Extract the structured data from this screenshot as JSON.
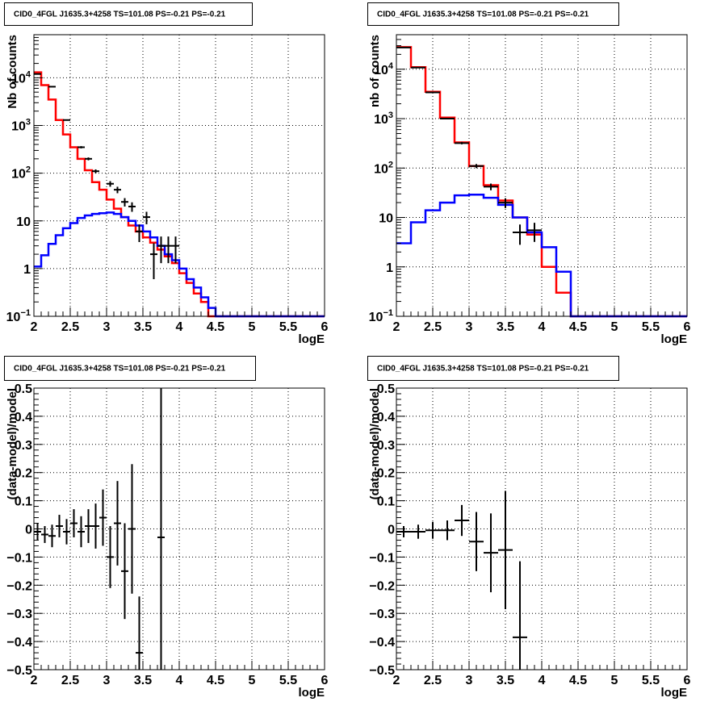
{
  "chart_data": [
    {
      "type": "line",
      "title": "CID0_4FGL J1635.3+4258 TS=101.08 PS=-0.21 PS=-0.21",
      "xlabel": "logE",
      "ylabel": "Nb of counts",
      "xlim": [
        2,
        6
      ],
      "ylim": [
        0.1,
        80000
      ],
      "yscale": "log",
      "grid": true,
      "x_ticks": [
        "2",
        "2.5",
        "3",
        "3.5",
        "4",
        "4.5",
        "5",
        "5.5",
        "6"
      ],
      "y_ticks": [
        {
          "base": "10",
          "exp": "−1",
          "value": 0.1
        },
        {
          "base": "1",
          "exp": "",
          "value": 1
        },
        {
          "base": "10",
          "exp": "",
          "value": 10
        },
        {
          "base": "10",
          "exp": "2",
          "value": 100
        },
        {
          "base": "10",
          "exp": "3",
          "value": 1000
        },
        {
          "base": "10",
          "exp": "4",
          "value": 10000
        }
      ],
      "bin_edges": [
        2.0,
        2.1,
        2.2,
        2.3,
        2.4,
        2.5,
        2.6,
        2.7,
        2.8,
        2.9,
        3.0,
        3.1,
        3.2,
        3.3,
        3.4,
        3.5,
        3.6,
        3.7,
        3.8,
        3.9,
        4.0,
        4.1,
        4.2,
        4.3,
        4.4,
        4.5,
        4.6,
        4.7,
        4.8,
        4.9,
        5.0,
        5.1,
        5.2,
        5.3,
        5.4,
        5.5,
        5.6,
        5.7,
        5.8,
        5.9,
        6.0
      ],
      "series": [
        {
          "color": "#ff0000",
          "values": [
            13000,
            7000,
            3500,
            1300,
            650,
            350,
            200,
            115,
            65,
            45,
            28,
            18,
            12,
            8,
            6,
            4.5,
            3.5,
            2.5,
            1.8,
            1.3,
            0.8,
            0.5,
            0.3,
            0.2,
            0.1,
            0.1,
            0.1,
            0.1,
            0.1,
            0.1,
            0.1,
            0.1,
            0.1,
            0.1,
            0.1,
            0.1,
            0.1,
            0.1,
            0.1,
            0.1
          ]
        },
        {
          "color": "#0000ff",
          "values": [
            1.1,
            1.9,
            3.3,
            5,
            7,
            9,
            11.5,
            13,
            14,
            14.5,
            15,
            14,
            12,
            10,
            8,
            6,
            4.5,
            3,
            2,
            1.5,
            1,
            0.6,
            0.4,
            0.25,
            0.15,
            0.1,
            0.1,
            0.1,
            0.1,
            0.1,
            0.1,
            0.1,
            0.1,
            0.1,
            0.1,
            0.1,
            0.1,
            0.1,
            0.1,
            0.1
          ]
        }
      ],
      "data_points": [
        {
          "x": 2.05,
          "y": 12000,
          "yerr": [
            110,
            110
          ]
        },
        {
          "x": 2.25,
          "y": 6500,
          "yerr": [
            80,
            80
          ]
        },
        {
          "x": 2.45,
          "y": 1300,
          "yerr": [
            36,
            36
          ]
        },
        {
          "x": 2.65,
          "y": 350,
          "yerr": [
            19,
            19
          ]
        },
        {
          "x": 2.75,
          "y": 200,
          "yerr": [
            14,
            14
          ]
        },
        {
          "x": 2.85,
          "y": 110,
          "yerr": [
            10,
            10
          ]
        },
        {
          "x": 3.05,
          "y": 60,
          "yerr": [
            8,
            8
          ]
        },
        {
          "x": 3.15,
          "y": 45,
          "yerr": [
            7,
            7
          ]
        },
        {
          "x": 3.25,
          "y": 25,
          "yerr": [
            5,
            5
          ]
        },
        {
          "x": 3.35,
          "y": 20,
          "yerr": [
            4.5,
            4.5
          ]
        },
        {
          "x": 3.45,
          "y": 6,
          "yerr": [
            2.4,
            2.4
          ]
        },
        {
          "x": 3.55,
          "y": 12,
          "yerr": [
            3.5,
            3.5
          ]
        },
        {
          "x": 3.65,
          "y": 2,
          "yerr": [
            1.4,
            1.4
          ]
        },
        {
          "x": 3.75,
          "y": 3,
          "yerr": [
            1.7,
            1.7
          ]
        },
        {
          "x": 3.85,
          "y": 3,
          "yerr": [
            1.7,
            1.7
          ]
        },
        {
          "x": 3.95,
          "y": 3,
          "yerr": [
            1.7,
            1.7
          ]
        }
      ]
    },
    {
      "type": "line",
      "title": "CID0_4FGL J1635.3+4258 TS=101.08 PS=-0.21 PS=-0.21",
      "xlabel": "logE",
      "ylabel": "nb of counts",
      "xlim": [
        2,
        6
      ],
      "ylim": [
        0.1,
        50000
      ],
      "yscale": "log",
      "grid": true,
      "x_ticks": [
        "2",
        "2.5",
        "3",
        "3.5",
        "4",
        "4.5",
        "5",
        "5.5",
        "6"
      ],
      "y_ticks": [
        {
          "base": "10",
          "exp": "−1",
          "value": 0.1
        },
        {
          "base": "1",
          "exp": "",
          "value": 1
        },
        {
          "base": "10",
          "exp": "",
          "value": 10
        },
        {
          "base": "10",
          "exp": "2",
          "value": 100
        },
        {
          "base": "10",
          "exp": "3",
          "value": 1000
        },
        {
          "base": "10",
          "exp": "4",
          "value": 10000
        }
      ],
      "bin_edges": [
        2.0,
        2.2,
        2.4,
        2.6,
        2.8,
        3.0,
        3.2,
        3.4,
        3.6,
        3.8,
        4.0,
        4.2,
        4.4,
        4.6,
        4.8,
        5.0,
        5.2,
        5.4,
        5.6,
        5.8,
        6.0
      ],
      "series": [
        {
          "color": "#ff0000",
          "values": [
            28000,
            11000,
            3500,
            1050,
            330,
            110,
            45,
            22,
            10,
            4.5,
            1,
            0.3,
            0.1,
            0.1,
            0.1,
            0.1,
            0.1,
            0.1,
            0.1,
            0.1
          ]
        },
        {
          "color": "#0000ff",
          "values": [
            3,
            8,
            14,
            20,
            28,
            29,
            25,
            18,
            10,
            5,
            2.5,
            0.8,
            0.1,
            0.1,
            0.1,
            0.1,
            0.1,
            0.1,
            0.1,
            0.1
          ]
        }
      ],
      "data_points": [
        {
          "x": 2.1,
          "y": 27500,
          "yerr": [
            170,
            170
          ]
        },
        {
          "x": 2.3,
          "y": 10800,
          "yerr": [
            104,
            104
          ]
        },
        {
          "x": 2.5,
          "y": 3400,
          "yerr": [
            58,
            58
          ]
        },
        {
          "x": 2.7,
          "y": 1000,
          "yerr": [
            32,
            32
          ]
        },
        {
          "x": 2.9,
          "y": 320,
          "yerr": [
            18,
            18
          ]
        },
        {
          "x": 3.1,
          "y": 110,
          "yerr": [
            10.5,
            10.5
          ]
        },
        {
          "x": 3.3,
          "y": 42,
          "yerr": [
            6.5,
            6.5
          ]
        },
        {
          "x": 3.5,
          "y": 20,
          "yerr": [
            4.5,
            4.5
          ]
        },
        {
          "x": 3.7,
          "y": 5,
          "yerr": [
            2.2,
            2.2
          ]
        },
        {
          "x": 3.9,
          "y": 5.5,
          "yerr": [
            2.3,
            2.3
          ]
        }
      ]
    },
    {
      "type": "scatter",
      "title": "CID0_4FGL J1635.3+4258 TS=101.08 PS=-0.21 PS=-0.21",
      "xlabel": "logE",
      "ylabel": "(data-model)/model",
      "xlim": [
        2,
        6
      ],
      "ylim": [
        -0.5,
        0.5
      ],
      "grid": true,
      "x_ticks": [
        "2",
        "2.5",
        "3",
        "3.5",
        "4",
        "4.5",
        "5",
        "5.5",
        "6"
      ],
      "y_ticks": [
        "−0.5",
        "−0.4",
        "−0.3",
        "−0.2",
        "−0.1",
        "0",
        "0.1",
        "0.2",
        "0.3",
        "0.4",
        "0.5"
      ],
      "y_tick_values": [
        -0.5,
        -0.4,
        -0.3,
        -0.2,
        -0.1,
        0,
        0.1,
        0.2,
        0.3,
        0.4,
        0.5
      ],
      "xerr": 0.05,
      "data_points": [
        {
          "x": 2.05,
          "y": -0.01,
          "yerr": 0.03
        },
        {
          "x": 2.15,
          "y": -0.02,
          "yerr": 0.03
        },
        {
          "x": 2.25,
          "y": -0.025,
          "yerr": 0.04
        },
        {
          "x": 2.35,
          "y": 0.01,
          "yerr": 0.04
        },
        {
          "x": 2.45,
          "y": -0.01,
          "yerr": 0.045
        },
        {
          "x": 2.55,
          "y": 0.02,
          "yerr": 0.05
        },
        {
          "x": 2.65,
          "y": -0.01,
          "yerr": 0.055
        },
        {
          "x": 2.75,
          "y": 0.01,
          "yerr": 0.06
        },
        {
          "x": 2.85,
          "y": 0.01,
          "yerr": 0.08
        },
        {
          "x": 2.95,
          "y": 0.04,
          "yerr": 0.1
        },
        {
          "x": 3.05,
          "y": -0.1,
          "yerr": 0.11
        },
        {
          "x": 3.15,
          "y": 0.02,
          "yerr": 0.15
        },
        {
          "x": 3.25,
          "y": -0.15,
          "yerr": 0.17
        },
        {
          "x": 3.35,
          "y": 0.0,
          "yerr": 0.23
        },
        {
          "x": 3.45,
          "y": -0.44,
          "yerr": 0.2
        },
        {
          "x": 3.75,
          "y": -0.03,
          "yerr": 0.53
        }
      ]
    },
    {
      "type": "scatter",
      "title": "CID0_4FGL J1635.3+4258 TS=101.08 PS=-0.21 PS=-0.21",
      "xlabel": "logE",
      "ylabel": "(data-model)/model",
      "xlim": [
        2,
        6
      ],
      "ylim": [
        -0.5,
        0.5
      ],
      "grid": true,
      "x_ticks": [
        "2",
        "2.5",
        "3",
        "3.5",
        "4",
        "4.5",
        "5",
        "5.5",
        "6"
      ],
      "y_ticks": [
        "−0.5",
        "−0.4",
        "−0.3",
        "−0.2",
        "−0.1",
        "0",
        "0.1",
        "0.2",
        "0.3",
        "0.4",
        "0.5"
      ],
      "y_tick_values": [
        -0.5,
        -0.4,
        -0.3,
        -0.2,
        -0.1,
        0,
        0.1,
        0.2,
        0.3,
        0.4,
        0.5
      ],
      "xerr": 0.1,
      "data_points": [
        {
          "x": 2.1,
          "y": -0.01,
          "yerr": 0.02
        },
        {
          "x": 2.3,
          "y": -0.01,
          "yerr": 0.025
        },
        {
          "x": 2.5,
          "y": -0.005,
          "yerr": 0.03
        },
        {
          "x": 2.7,
          "y": -0.005,
          "yerr": 0.035
        },
        {
          "x": 2.9,
          "y": 0.03,
          "yerr": 0.055
        },
        {
          "x": 3.1,
          "y": -0.045,
          "yerr": 0.105
        },
        {
          "x": 3.3,
          "y": -0.085,
          "yerr": 0.14
        },
        {
          "x": 3.5,
          "y": -0.075,
          "yerr": 0.21
        },
        {
          "x": 3.7,
          "y": -0.385,
          "yerr": 0.27
        }
      ]
    }
  ]
}
